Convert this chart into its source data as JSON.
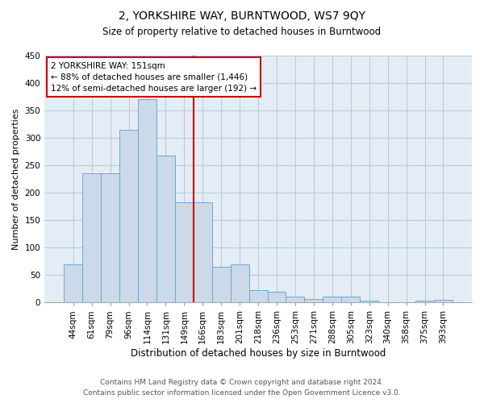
{
  "title": "2, YORKSHIRE WAY, BURNTWOOD, WS7 9QY",
  "subtitle": "Size of property relative to detached houses in Burntwood",
  "xlabel": "Distribution of detached houses by size in Burntwood",
  "ylabel": "Number of detached properties",
  "footnote1": "Contains HM Land Registry data © Crown copyright and database right 2024.",
  "footnote2": "Contains public sector information licensed under the Open Government Licence v3.0.",
  "annotation_line1": "2 YORKSHIRE WAY: 151sqm",
  "annotation_line2": "← 88% of detached houses are smaller (1,446)",
  "annotation_line3": "12% of semi-detached houses are larger (192) →",
  "bar_color": "#ccd9e8",
  "bar_edge_color": "#6aaad4",
  "vline_color": "#cc0000",
  "background_color": "#ffffff",
  "plot_bg_color": "#e4edf5",
  "grid_color": "#b8cdd8",
  "categories": [
    "44sqm",
    "61sqm",
    "79sqm",
    "96sqm",
    "114sqm",
    "131sqm",
    "149sqm",
    "166sqm",
    "183sqm",
    "201sqm",
    "218sqm",
    "236sqm",
    "253sqm",
    "271sqm",
    "288sqm",
    "305sqm",
    "323sqm",
    "340sqm",
    "358sqm",
    "375sqm",
    "393sqm"
  ],
  "values": [
    70,
    235,
    235,
    315,
    370,
    268,
    183,
    183,
    65,
    70,
    22,
    20,
    10,
    7,
    11,
    10,
    4,
    0,
    0,
    4,
    5
  ],
  "ylim": [
    0,
    450
  ],
  "yticks": [
    0,
    50,
    100,
    150,
    200,
    250,
    300,
    350,
    400,
    450
  ],
  "vline_index": 6.5,
  "title_fontsize": 10,
  "subtitle_fontsize": 8.5,
  "ylabel_fontsize": 8,
  "xlabel_fontsize": 8.5,
  "tick_fontsize": 7.5,
  "annotation_fontsize": 7.5,
  "footnote_fontsize": 6.5
}
